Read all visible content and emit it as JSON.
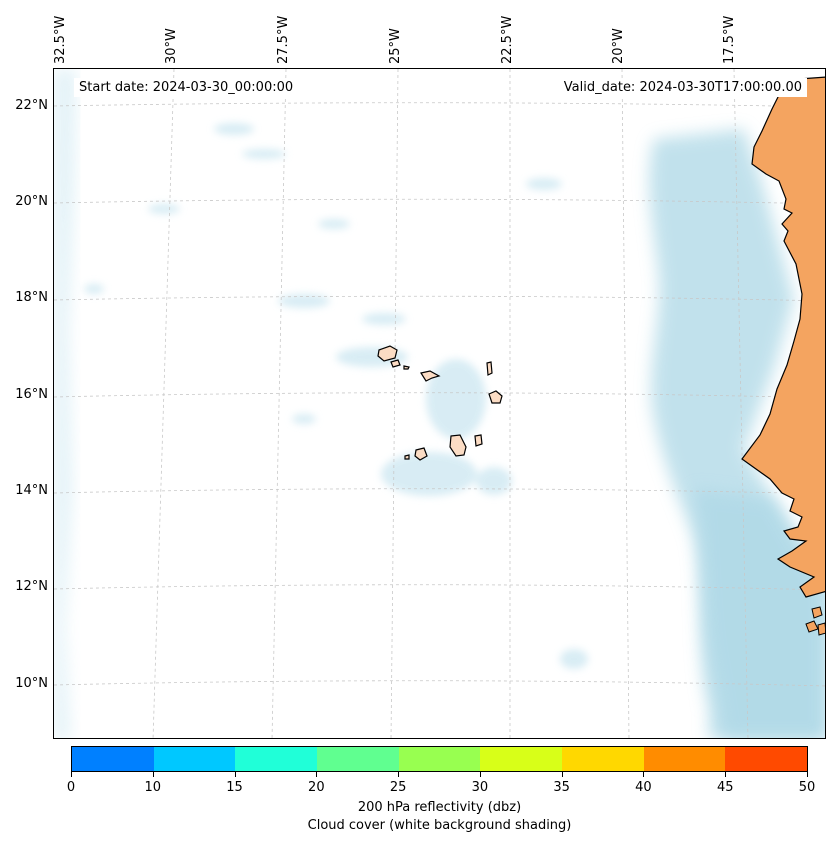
{
  "map": {
    "start_date": "Start date: 2024-03-30_00:00:00",
    "valid_date": "Valid_date: 2024-03-30T17:00:00.00",
    "lat_labels": [
      "22°N",
      "20°N",
      "18°N",
      "16°N",
      "14°N",
      "12°N",
      "10°N"
    ],
    "lon_labels": [
      "32.5°W",
      "30°W",
      "27.5°W",
      "25°W",
      "22.5°W",
      "20°W",
      "17.5°W"
    ],
    "land_color": "#f4a460",
    "island_color": "#fbdcc4",
    "cloud_color": "#add8e6"
  },
  "colorbar": {
    "ticks": [
      "0",
      "10",
      "15",
      "20",
      "25",
      "30",
      "35",
      "40",
      "45",
      "50"
    ],
    "colors": [
      "#0080ff",
      "#00c8ff",
      "#20ffd8",
      "#60ff90",
      "#98ff50",
      "#d8ff18",
      "#ffd800",
      "#ff8c00",
      "#ff4a00"
    ],
    "label": "200 hPa reflectivity (dbz)",
    "sublabel": "Cloud cover (white background shading)"
  }
}
